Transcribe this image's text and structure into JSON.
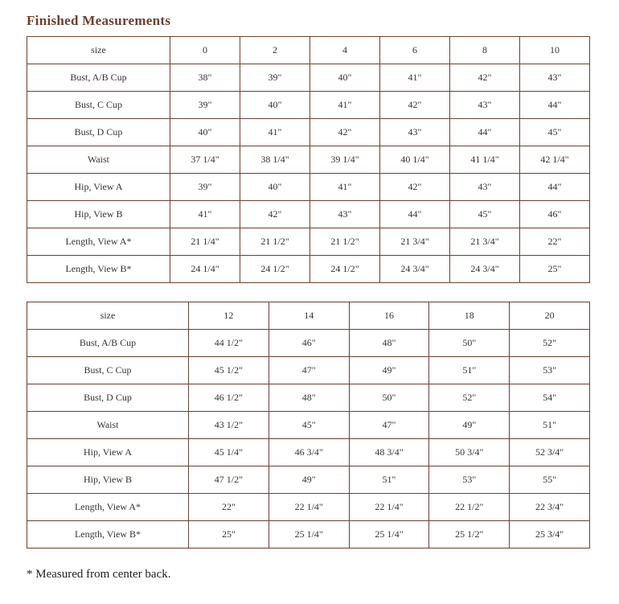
{
  "title": "Finished Measurements",
  "tables": [
    {
      "header": [
        "size",
        "0",
        "2",
        "4",
        "6",
        "8",
        "10"
      ],
      "rows": [
        [
          "Bust, A/B Cup",
          "38\"",
          "39\"",
          "40\"",
          "41\"",
          "42\"",
          "43\""
        ],
        [
          "Bust, C Cup",
          "39\"",
          "40\"",
          "41\"",
          "42\"",
          "43\"",
          "44\""
        ],
        [
          "Bust, D Cup",
          "40\"",
          "41\"",
          "42\"",
          "43\"",
          "44\"",
          "45\""
        ],
        [
          "Waist",
          "37 1/4\"",
          "38 1/4\"",
          "39 1/4\"",
          "40 1/4\"",
          "41 1/4\"",
          "42 1/4\""
        ],
        [
          "Hip, View A",
          "39\"",
          "40\"",
          "41\"",
          "42\"",
          "43\"",
          "44\""
        ],
        [
          "Hip, View B",
          "41\"",
          "42\"",
          "43\"",
          "44\"",
          "45\"",
          "46\""
        ],
        [
          "Length, View A*",
          "21 1/4\"",
          "21 1/2\"",
          "21 1/2\"",
          "21 3/4\"",
          "21 3/4\"",
          "22\""
        ],
        [
          "Length, View B*",
          "24 1/4\"",
          "24 1/2\"",
          "24 1/2\"",
          "24 3/4\"",
          "24 3/4\"",
          "25\""
        ]
      ]
    },
    {
      "header": [
        "size",
        "12",
        "14",
        "16",
        "18",
        "20"
      ],
      "rows": [
        [
          "Bust, A/B Cup",
          "44 1/2\"",
          "46\"",
          "48\"",
          "50\"",
          "52\""
        ],
        [
          "Bust, C Cup",
          "45 1/2\"",
          "47\"",
          "49\"",
          "51\"",
          "53\""
        ],
        [
          "Bust, D Cup",
          "46 1/2\"",
          "48\"",
          "50\"",
          "52\"",
          "54\""
        ],
        [
          "Waist",
          "43 1/2\"",
          "45\"",
          "47\"",
          "49\"",
          "51\""
        ],
        [
          "Hip, View A",
          "45 1/4\"",
          "46 3/4\"",
          "48 3/4\"",
          "50 3/4\"",
          "52 3/4\""
        ],
        [
          "Hip, View B",
          "47 1/2\"",
          "49\"",
          "51\"",
          "53\"",
          "55\""
        ],
        [
          "Length, View A*",
          "22\"",
          "22 1/4\"",
          "22 1/4\"",
          "22 1/2\"",
          "22 3/4\""
        ],
        [
          "Length, View B*",
          "25\"",
          "25 1/4\"",
          "25 1/4\"",
          "25 1/2\"",
          "25 3/4\""
        ]
      ]
    }
  ],
  "footnote": "* Measured from center back."
}
